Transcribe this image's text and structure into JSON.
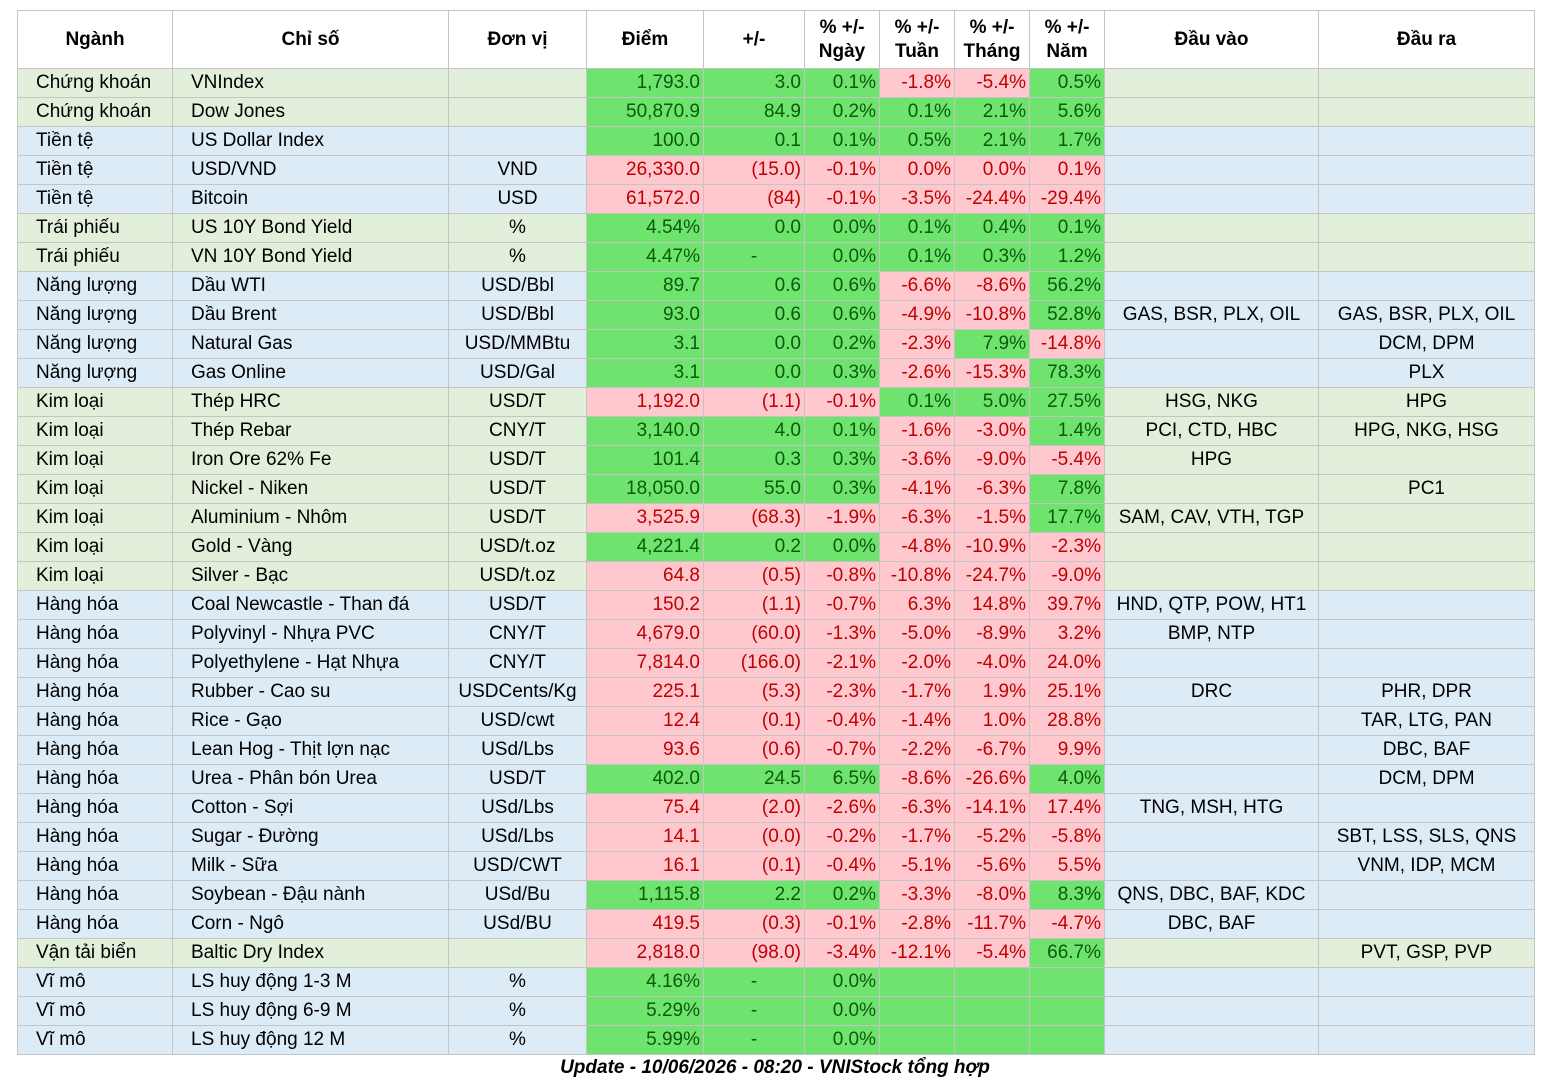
{
  "table": {
    "headers": [
      "Ngành",
      "Chỉ số",
      "Đơn vị",
      "Điểm",
      "+/-",
      "% +/-\nNgày",
      "% +/-\nTuần",
      "% +/-\nTháng",
      "% +/-\nNăm",
      "Đầu vào",
      "Đầu ra"
    ],
    "fill_colors": {
      "green": {
        "background": "#6ee36e",
        "text": "#0a5a0a"
      },
      "red": {
        "background": "#ffc7ce",
        "text": "#c00000"
      }
    },
    "band_colors": [
      "#e2efda",
      "#ddebf7"
    ],
    "rows": [
      {
        "cells": [
          "Chứng khoán",
          "VNIndex",
          null,
          "1,793.0",
          "3.0",
          "0.1%",
          "-1.8%",
          "-5.4%",
          "0.5%",
          null,
          null
        ],
        "fill": [
          "green",
          "green",
          "green",
          "red",
          "red",
          "green"
        ]
      },
      {
        "cells": [
          "Chứng khoán",
          "Dow Jones",
          null,
          "50,870.9",
          "84.9",
          "0.2%",
          "0.1%",
          "2.1%",
          "5.6%",
          null,
          null
        ],
        "fill": [
          "green",
          "green",
          "green",
          "green",
          "green",
          "green"
        ]
      },
      {
        "cells": [
          "Tiền tệ",
          "US Dollar Index",
          null,
          "100.0",
          "0.1",
          "0.1%",
          "0.5%",
          "2.1%",
          "1.7%",
          null,
          null
        ],
        "fill": [
          "green",
          "green",
          "green",
          "green",
          "green",
          "green"
        ]
      },
      {
        "cells": [
          "Tiền tệ",
          "USD/VND",
          "VND",
          "26,330.0",
          "(15.0)",
          "-0.1%",
          "0.0%",
          "0.0%",
          "0.1%",
          null,
          null
        ],
        "fill": [
          "red",
          "red",
          "red",
          "red",
          "red",
          "red"
        ]
      },
      {
        "cells": [
          "Tiền tệ",
          "Bitcoin",
          "USD",
          "61,572.0",
          "(84)",
          "-0.1%",
          "-3.5%",
          "-24.4%",
          "-29.4%",
          null,
          null
        ],
        "fill": [
          "red",
          "red",
          "red",
          "red",
          "red",
          "red"
        ]
      },
      {
        "cells": [
          "Trái phiếu",
          "US 10Y Bond Yield",
          "%",
          "4.54%",
          "0.0",
          "0.0%",
          "0.1%",
          "0.4%",
          "0.1%",
          null,
          null
        ],
        "fill": [
          "green",
          "green",
          "green",
          "green",
          "green",
          "green"
        ]
      },
      {
        "cells": [
          "Trái phiếu",
          "VN 10Y Bond Yield",
          "%",
          "4.47%",
          "-",
          "0.0%",
          "0.1%",
          "0.3%",
          "1.2%",
          null,
          null
        ],
        "fill": [
          "green",
          "green",
          "green",
          "green",
          "green",
          "green"
        ]
      },
      {
        "cells": [
          "Năng lượng",
          "Dầu WTI",
          "USD/Bbl",
          "89.7",
          "0.6",
          "0.6%",
          "-6.6%",
          "-8.6%",
          "56.2%",
          null,
          null
        ],
        "fill": [
          "green",
          "green",
          "green",
          "red",
          "red",
          "green"
        ]
      },
      {
        "cells": [
          "Năng lượng",
          "Dầu Brent",
          "USD/Bbl",
          "93.0",
          "0.6",
          "0.6%",
          "-4.9%",
          "-10.8%",
          "52.8%",
          "GAS, BSR, PLX, OIL",
          "GAS, BSR, PLX, OIL"
        ],
        "fill": [
          "green",
          "green",
          "green",
          "red",
          "red",
          "green"
        ]
      },
      {
        "cells": [
          "Năng lượng",
          "Natural Gas",
          "USD/MMBtu",
          "3.1",
          "0.0",
          "0.2%",
          "-2.3%",
          "7.9%",
          "-14.8%",
          null,
          "DCM, DPM"
        ],
        "fill": [
          "green",
          "green",
          "green",
          "red",
          "green",
          "red"
        ]
      },
      {
        "cells": [
          "Năng lượng",
          "Gas Online",
          "USD/Gal",
          "3.1",
          "0.0",
          "0.3%",
          "-2.6%",
          "-15.3%",
          "78.3%",
          null,
          "PLX"
        ],
        "fill": [
          "green",
          "green",
          "green",
          "red",
          "red",
          "green"
        ]
      },
      {
        "cells": [
          "Kim loại",
          "Thép HRC",
          "USD/T",
          "1,192.0",
          "(1.1)",
          "-0.1%",
          "0.1%",
          "5.0%",
          "27.5%",
          "HSG, NKG",
          "HPG"
        ],
        "fill": [
          "red",
          "red",
          "red",
          "green",
          "green",
          "green"
        ]
      },
      {
        "cells": [
          "Kim loại",
          "Thép Rebar",
          "CNY/T",
          "3,140.0",
          "4.0",
          "0.1%",
          "-1.6%",
          "-3.0%",
          "1.4%",
          "PCI, CTD, HBC",
          "HPG, NKG, HSG"
        ],
        "fill": [
          "green",
          "green",
          "green",
          "red",
          "red",
          "green"
        ]
      },
      {
        "cells": [
          "Kim loại",
          "Iron Ore 62% Fe",
          "USD/T",
          "101.4",
          "0.3",
          "0.3%",
          "-3.6%",
          "-9.0%",
          "-5.4%",
          "HPG",
          null
        ],
        "fill": [
          "green",
          "green",
          "green",
          "red",
          "red",
          "red"
        ]
      },
      {
        "cells": [
          "Kim loại",
          "Nickel - Niken",
          "USD/T",
          "18,050.0",
          "55.0",
          "0.3%",
          "-4.1%",
          "-6.3%",
          "7.8%",
          null,
          "PC1"
        ],
        "fill": [
          "green",
          "green",
          "green",
          "red",
          "red",
          "green"
        ]
      },
      {
        "cells": [
          "Kim loại",
          "Aluminium - Nhôm",
          "USD/T",
          "3,525.9",
          "(68.3)",
          "-1.9%",
          "-6.3%",
          "-1.5%",
          "17.7%",
          "SAM, CAV, VTH, TGP",
          null
        ],
        "fill": [
          "red",
          "red",
          "red",
          "red",
          "red",
          "green"
        ]
      },
      {
        "cells": [
          "Kim loại",
          "Gold - Vàng",
          "USD/t.oz",
          "4,221.4",
          "0.2",
          "0.0%",
          "-4.8%",
          "-10.9%",
          "-2.3%",
          null,
          null
        ],
        "fill": [
          "green",
          "green",
          "green",
          "red",
          "red",
          "red"
        ]
      },
      {
        "cells": [
          "Kim loại",
          "Silver - Bạc",
          "USD/t.oz",
          "64.8",
          "(0.5)",
          "-0.8%",
          "-10.8%",
          "-24.7%",
          "-9.0%",
          null,
          null
        ],
        "fill": [
          "red",
          "red",
          "red",
          "red",
          "red",
          "red"
        ]
      },
      {
        "cells": [
          "Hàng hóa",
          "Coal Newcastle - Than đá",
          "USD/T",
          "150.2",
          "(1.1)",
          "-0.7%",
          "6.3%",
          "14.8%",
          "39.7%",
          "HND, QTP, POW, HT1",
          null
        ],
        "fill": [
          "red",
          "red",
          "red",
          "red",
          "red",
          "red"
        ]
      },
      {
        "cells": [
          "Hàng hóa",
          "Polyvinyl - Nhựa PVC",
          "CNY/T",
          "4,679.0",
          "(60.0)",
          "-1.3%",
          "-5.0%",
          "-8.9%",
          "3.2%",
          "BMP, NTP",
          null
        ],
        "fill": [
          "red",
          "red",
          "red",
          "red",
          "red",
          "red"
        ]
      },
      {
        "cells": [
          "Hàng hóa",
          "Polyethylene - Hạt Nhựa",
          "CNY/T",
          "7,814.0",
          "(166.0)",
          "-2.1%",
          "-2.0%",
          "-4.0%",
          "24.0%",
          null,
          null
        ],
        "fill": [
          "red",
          "red",
          "red",
          "red",
          "red",
          "red"
        ]
      },
      {
        "cells": [
          "Hàng hóa",
          "Rubber - Cao su",
          "USDCents/Kg",
          "225.1",
          "(5.3)",
          "-2.3%",
          "-1.7%",
          "1.9%",
          "25.1%",
          "DRC",
          "PHR, DPR"
        ],
        "fill": [
          "red",
          "red",
          "red",
          "red",
          "red",
          "red"
        ]
      },
      {
        "cells": [
          "Hàng hóa",
          "Rice - Gạo",
          "USD/cwt",
          "12.4",
          "(0.1)",
          "-0.4%",
          "-1.4%",
          "1.0%",
          "28.8%",
          null,
          "TAR, LTG, PAN"
        ],
        "fill": [
          "red",
          "red",
          "red",
          "red",
          "red",
          "red"
        ]
      },
      {
        "cells": [
          "Hàng hóa",
          "Lean Hog - Thịt lợn nạc",
          "USd/Lbs",
          "93.6",
          "(0.6)",
          "-0.7%",
          "-2.2%",
          "-6.7%",
          "9.9%",
          null,
          "DBC, BAF"
        ],
        "fill": [
          "red",
          "red",
          "red",
          "red",
          "red",
          "red"
        ]
      },
      {
        "cells": [
          "Hàng hóa",
          "Urea - Phân bón Urea",
          "USD/T",
          "402.0",
          "24.5",
          "6.5%",
          "-8.6%",
          "-26.6%",
          "4.0%",
          null,
          "DCM, DPM"
        ],
        "fill": [
          "green",
          "green",
          "green",
          "red",
          "red",
          "green"
        ]
      },
      {
        "cells": [
          "Hàng hóa",
          "Cotton - Sợi",
          "USd/Lbs",
          "75.4",
          "(2.0)",
          "-2.6%",
          "-6.3%",
          "-14.1%",
          "17.4%",
          "TNG, MSH, HTG",
          null
        ],
        "fill": [
          "red",
          "red",
          "red",
          "red",
          "red",
          "red"
        ]
      },
      {
        "cells": [
          "Hàng hóa",
          "Sugar - Đường",
          "USd/Lbs",
          "14.1",
          "(0.0)",
          "-0.2%",
          "-1.7%",
          "-5.2%",
          "-5.8%",
          null,
          "SBT, LSS, SLS, QNS"
        ],
        "fill": [
          "red",
          "red",
          "red",
          "red",
          "red",
          "red"
        ]
      },
      {
        "cells": [
          "Hàng hóa",
          "Milk - Sữa",
          "USD/CWT",
          "16.1",
          "(0.1)",
          "-0.4%",
          "-5.1%",
          "-5.6%",
          "5.5%",
          null,
          "VNM, IDP, MCM"
        ],
        "fill": [
          "red",
          "red",
          "red",
          "red",
          "red",
          "red"
        ]
      },
      {
        "cells": [
          "Hàng hóa",
          "Soybean - Đậu nành",
          "USd/Bu",
          "1,115.8",
          "2.2",
          "0.2%",
          "-3.3%",
          "-8.0%",
          "8.3%",
          "QNS, DBC, BAF, KDC",
          null
        ],
        "fill": [
          "green",
          "green",
          "green",
          "red",
          "red",
          "green"
        ]
      },
      {
        "cells": [
          "Hàng hóa",
          "Corn - Ngô",
          "USd/BU",
          "419.5",
          "(0.3)",
          "-0.1%",
          "-2.8%",
          "-11.7%",
          "-4.7%",
          "DBC, BAF",
          null
        ],
        "fill": [
          "red",
          "red",
          "red",
          "red",
          "red",
          "red"
        ]
      },
      {
        "cells": [
          "Vận tải biển",
          "Baltic Dry Index",
          null,
          "2,818.0",
          "(98.0)",
          "-3.4%",
          "-12.1%",
          "-5.4%",
          "66.7%",
          null,
          "PVT, GSP, PVP"
        ],
        "fill": [
          "red",
          "red",
          "red",
          "red",
          "red",
          "green"
        ]
      },
      {
        "cells": [
          "Vĩ mô",
          "LS huy động 1-3 M",
          "%",
          "4.16%",
          "-",
          "0.0%",
          null,
          null,
          null,
          null,
          null
        ],
        "fill": [
          "green",
          "green",
          "green",
          "green",
          "green",
          "green"
        ]
      },
      {
        "cells": [
          "Vĩ mô",
          "LS huy động 6-9 M",
          "%",
          "5.29%",
          "-",
          "0.0%",
          null,
          null,
          null,
          null,
          null
        ],
        "fill": [
          "green",
          "green",
          "green",
          "green",
          "green",
          "green"
        ]
      },
      {
        "cells": [
          "Vĩ mô",
          "LS huy động 12 M",
          "%",
          "5.99%",
          "-",
          "0.0%",
          null,
          null,
          null,
          null,
          null
        ],
        "fill": [
          "green",
          "green",
          "green",
          "green",
          "green",
          "green"
        ]
      }
    ]
  },
  "footer": "Update - 10/06/2026 - 08:20 - VNIStock tổng hợp"
}
